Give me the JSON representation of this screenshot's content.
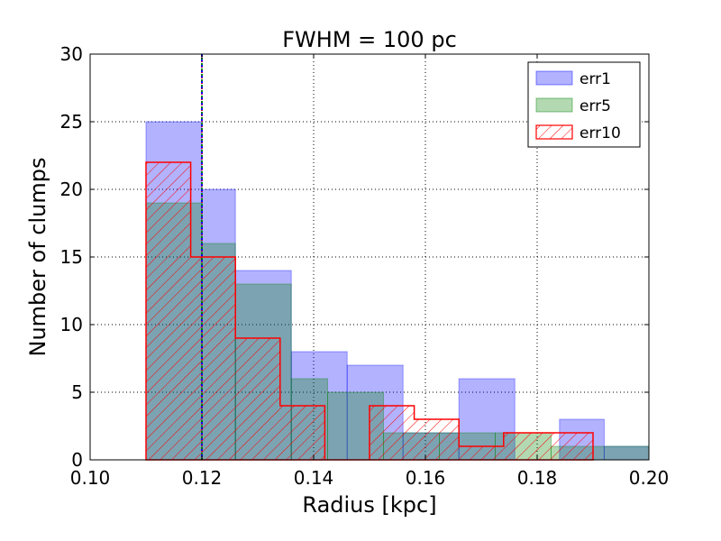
{
  "chart_data": {
    "type": "bar",
    "title": "FWHM = 100 pc",
    "xlabel": "Radius [kpc]",
    "ylabel": "Number of clumps",
    "xlim": [
      0.1,
      0.2
    ],
    "ylim": [
      0,
      30
    ],
    "xticks": [
      "0.10",
      "0.12",
      "0.14",
      "0.16",
      "0.18",
      "0.20"
    ],
    "yticks": [
      "0",
      "5",
      "10",
      "15",
      "20",
      "25",
      "30"
    ],
    "grid": true,
    "legend_position": "top-right",
    "vertical_lines": [
      0.12
    ],
    "series": [
      {
        "name": "err1",
        "style": "filled",
        "color": "#0000ff",
        "bin_edges": [
          0.11,
          0.12,
          0.126,
          0.136,
          0.146,
          0.156,
          0.166,
          0.176,
          0.184,
          0.192,
          0.2
        ],
        "values": [
          25,
          20,
          14,
          8,
          7,
          2,
          6,
          0,
          3,
          1
        ]
      },
      {
        "name": "err5",
        "style": "filled",
        "color": "#008000",
        "bin_edges": [
          0.11,
          0.12,
          0.126,
          0.136,
          0.1425,
          0.1525,
          0.1625,
          0.1725,
          0.1825,
          0.2
        ],
        "values": [
          19,
          16,
          13,
          6,
          5,
          2,
          2,
          2,
          1
        ]
      },
      {
        "name": "err10",
        "style": "hatched",
        "color": "#ff0000",
        "bin_edges": [
          0.11,
          0.118,
          0.126,
          0.134,
          0.142,
          0.15,
          0.158,
          0.166,
          0.174,
          0.182,
          0.19
        ],
        "values": [
          22,
          15,
          9,
          4,
          0,
          4,
          3,
          1,
          2,
          2
        ]
      }
    ]
  }
}
